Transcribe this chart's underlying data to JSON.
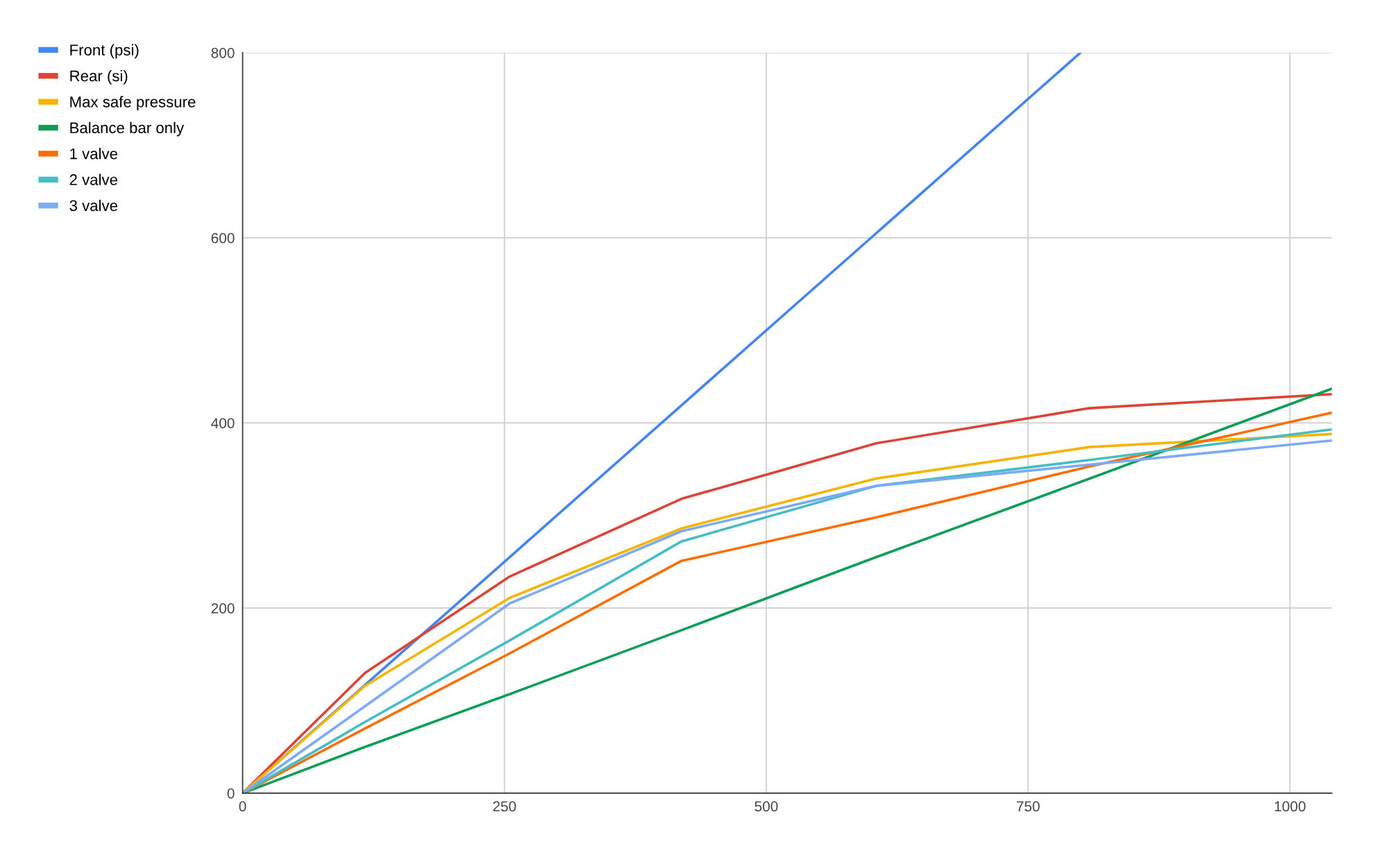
{
  "chart_data": {
    "type": "line",
    "x": [
      0,
      117,
      255,
      419,
      605,
      809,
      1040
    ],
    "xlim": [
      0,
      1040
    ],
    "xticks": [
      0,
      250,
      500,
      750,
      1000
    ],
    "ylim": [
      0,
      800
    ],
    "yticks": [
      0,
      200,
      400,
      600,
      800
    ],
    "grid": true,
    "legend": "top left",
    "series": [
      {
        "name": "Front (psi)",
        "color": "#4285f4",
        "x": [
          0,
          117,
          255,
          419,
          605,
          800
        ],
        "values": [
          0,
          117,
          255,
          419,
          605,
          800
        ]
      },
      {
        "name": "Rear (si)",
        "color": "#db4437",
        "values": [
          0,
          130,
          234,
          318,
          378,
          416,
          431
        ]
      },
      {
        "name": "Max safe pressure",
        "color": "#f4b400",
        "values": [
          0,
          116,
          211,
          286,
          340,
          374,
          388
        ]
      },
      {
        "name": "Balance bar only",
        "color": "#0f9d58",
        "values": [
          0,
          50,
          107,
          176,
          255,
          340,
          437
        ]
      },
      {
        "name": "1 valve",
        "color": "#ff6d01",
        "values": [
          0,
          70,
          151,
          251,
          298,
          353,
          411
        ]
      },
      {
        "name": "2 valve",
        "color": "#46bdc6",
        "values": [
          0,
          77,
          165,
          272,
          332,
          360,
          393
        ]
      },
      {
        "name": "3 valve",
        "color": "#7baaf7",
        "values": [
          0,
          94,
          205,
          283,
          332,
          355,
          381
        ]
      }
    ]
  }
}
